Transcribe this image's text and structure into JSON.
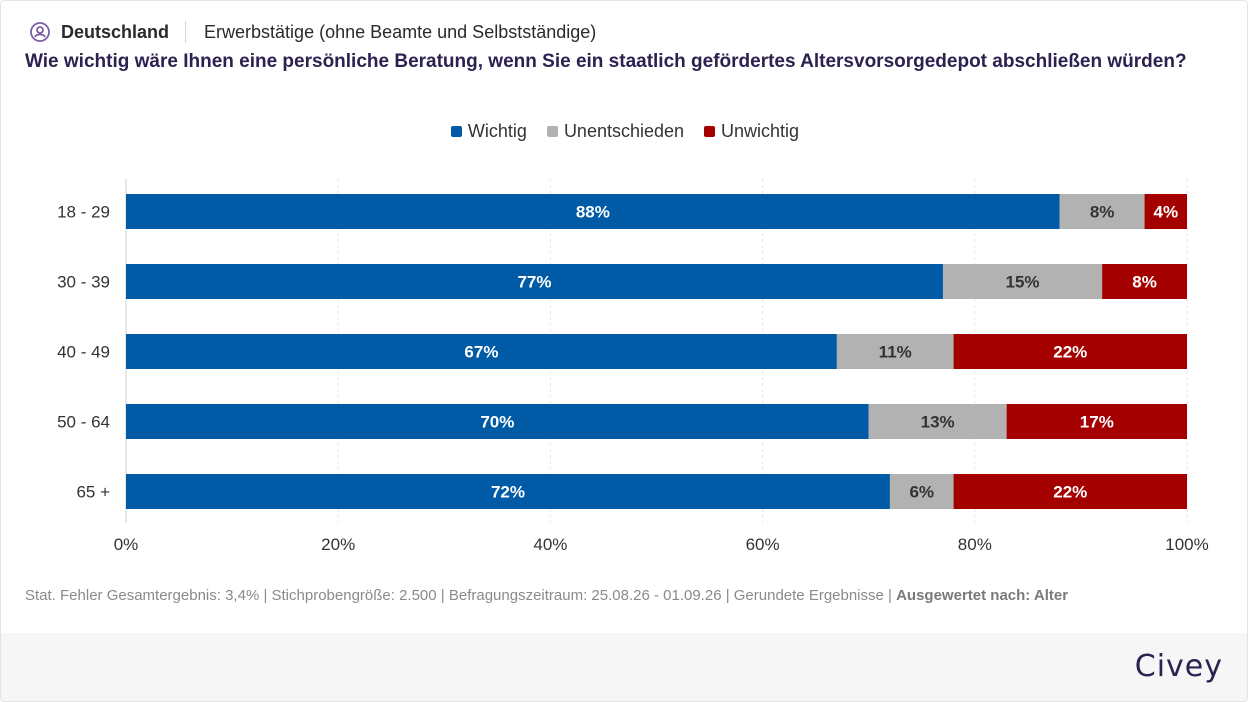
{
  "header": {
    "country": "Deutschland",
    "group": "Erwerbstätige (ohne Beamte und Selbstständige)"
  },
  "question": "Wie wichtig wäre Ihnen eine persönliche Beratung, wenn Sie ein staatlich gefördertes Altersvorsorgedepot abschließen würden?",
  "colors": {
    "wichtig": "#005aa5",
    "unentschieden": "#b2b2b2",
    "unwichtig": "#a50000"
  },
  "chart_data": {
    "type": "bar",
    "orientation": "horizontal",
    "stacked": true,
    "categories": [
      "18 - 29",
      "30 - 39",
      "40 - 49",
      "50 - 64",
      "65 +"
    ],
    "series": [
      {
        "name": "Wichtig",
        "color": "#005aa5",
        "label_color": "#ffffff",
        "values": [
          88,
          77,
          67,
          70,
          72
        ]
      },
      {
        "name": "Unentschieden",
        "color": "#b2b2b2",
        "label_color": "#333333",
        "values": [
          8,
          15,
          11,
          13,
          6
        ]
      },
      {
        "name": "Unwichtig",
        "color": "#a50000",
        "label_color": "#ffffff",
        "values": [
          4,
          8,
          22,
          17,
          22
        ]
      }
    ],
    "xlim": [
      0,
      100
    ],
    "xticks": [
      "0%",
      "20%",
      "40%",
      "60%",
      "80%",
      "100%"
    ],
    "value_suffix": "%",
    "legend_position": "top-center",
    "grid": true
  },
  "footnote": {
    "text": "Stat. Fehler Gesamtergebnis: 3,4% | Stichprobengröße: 2.500 | Befragungszeitraum: 25.08.26 - 01.09.26 | Gerundete Ergebnisse | ",
    "bold": "Ausgewertet nach: Alter"
  },
  "brand": "Civey"
}
